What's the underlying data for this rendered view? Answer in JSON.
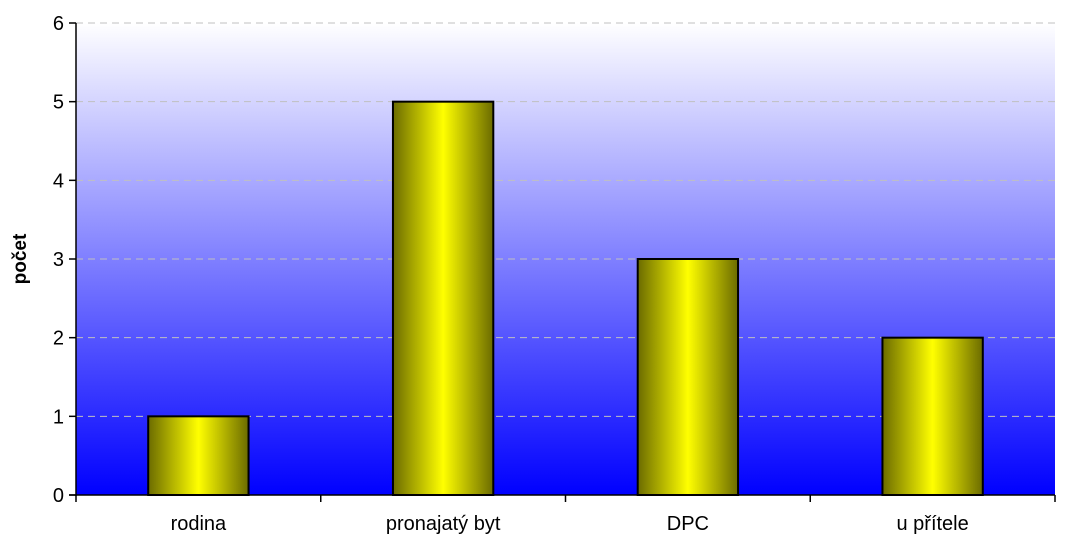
{
  "chart_data": {
    "type": "bar",
    "title": "",
    "xlabel": "",
    "ylabel": "počet",
    "categories": [
      "rodina",
      "pronajatý byt",
      "DPC",
      "u přítele"
    ],
    "values": [
      1,
      5,
      3,
      2
    ],
    "ylim": [
      0,
      6
    ],
    "yticks": [
      0,
      1,
      2,
      3,
      4,
      5,
      6
    ],
    "grid": true,
    "legend": "none",
    "colors": {
      "bar_fill": "#ffff00",
      "bar_edge": "#000000",
      "plot_bg_top": "#ffffff",
      "plot_bg_bottom": "#0000ff",
      "grid": "#c0c0c0"
    }
  }
}
